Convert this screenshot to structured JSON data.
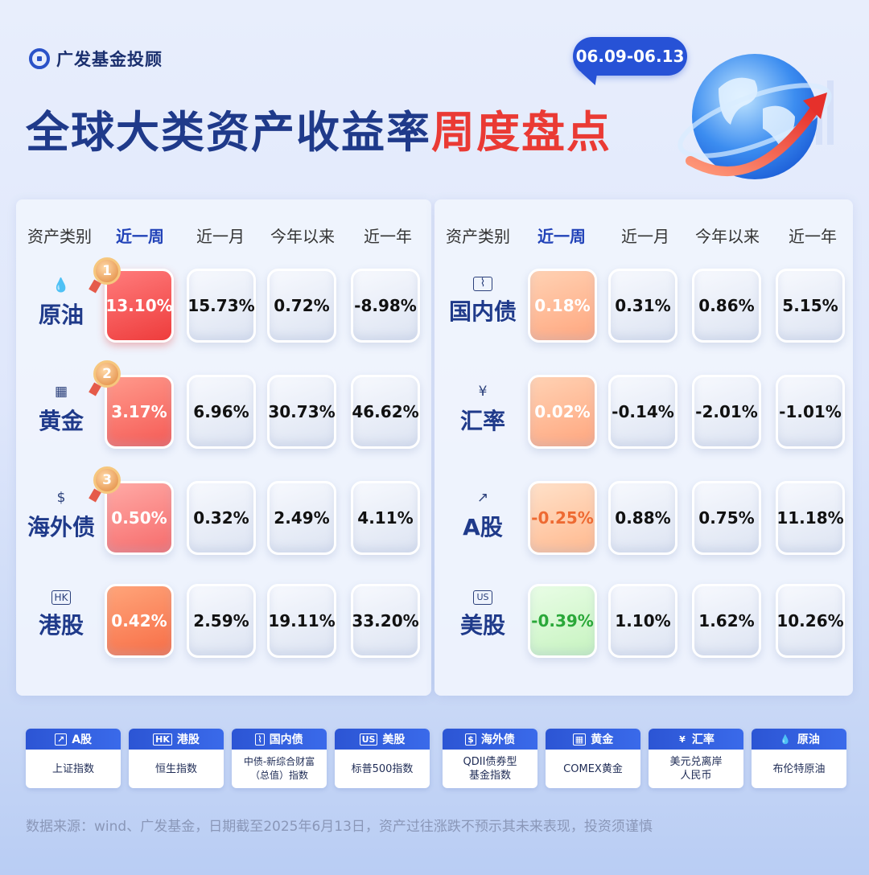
{
  "brand": "广发基金投顾",
  "title_part1": "全球大类资产收益率",
  "title_part2": "周度盘点",
  "date_range": "06.09-06.13",
  "headers": [
    "资产类别",
    "近一周",
    "近一月",
    "今年以来",
    "近一年"
  ],
  "left_table": [
    {
      "name": "原油",
      "icon": "oil-drop-icon",
      "glyph": "💧",
      "rank": "1",
      "values": [
        "13.10%",
        "15.73%",
        "0.72%",
        "-8.98%"
      ]
    },
    {
      "name": "黄金",
      "icon": "gold-bar-icon",
      "glyph": "▦",
      "rank": "2",
      "values": [
        "3.17%",
        "6.96%",
        "30.73%",
        "46.62%"
      ]
    },
    {
      "name": "海外债",
      "icon": "dollar-bill-icon",
      "glyph": "$",
      "rank": "3",
      "values": [
        "0.50%",
        "0.32%",
        "2.49%",
        "4.11%"
      ]
    },
    {
      "name": "港股",
      "icon": "hk-badge-icon",
      "glyph": "HK",
      "rank": "",
      "values": [
        "0.42%",
        "2.59%",
        "19.11%",
        "33.20%"
      ]
    }
  ],
  "right_table": [
    {
      "name": "国内债",
      "icon": "bond-chart-icon",
      "glyph": "⌇",
      "values": [
        "0.18%",
        "0.31%",
        "0.86%",
        "5.15%"
      ]
    },
    {
      "name": "汇率",
      "icon": "yen-icon",
      "glyph": "¥",
      "values": [
        "0.02%",
        "-0.14%",
        "-2.01%",
        "-1.01%"
      ]
    },
    {
      "name": "A股",
      "icon": "rising-chart-icon",
      "glyph": "↗",
      "values": [
        "-0.25%",
        "0.88%",
        "0.75%",
        "11.18%"
      ]
    },
    {
      "name": "美股",
      "icon": "us-badge-icon",
      "glyph": "US",
      "values": [
        "-0.39%",
        "1.10%",
        "1.62%",
        "10.26%"
      ]
    }
  ],
  "legend": [
    {
      "name": "A股",
      "glyph": "↗",
      "desc": "上证指数"
    },
    {
      "name": "港股",
      "glyph": "HK",
      "desc": "恒生指数"
    },
    {
      "name": "国内债",
      "glyph": "⌇",
      "desc": "中债-新综合财富\n（总值）指数"
    },
    {
      "name": "美股",
      "glyph": "US",
      "desc": "标普500指数"
    },
    {
      "name": "海外债",
      "glyph": "$",
      "desc": "QDII债券型\n基金指数"
    },
    {
      "name": "黄金",
      "glyph": "▦",
      "desc": "COMEX黄金"
    },
    {
      "name": "汇率",
      "glyph": "¥",
      "desc": "美元兑离岸\n人民币"
    },
    {
      "name": "原油",
      "glyph": "💧",
      "desc": "布伦特原油"
    }
  ],
  "footnote": "数据来源：wind、广发基金，日期截至2025年6月13日，资产过往涨跌不预示其未来表现，投资须谨慎",
  "colors": {
    "accent_blue": "#2752d6",
    "title_blue": "#1f3a8a",
    "title_red": "#ea3a34",
    "positive_red": "#ee3c3c",
    "negative_green": "#2aa839"
  }
}
